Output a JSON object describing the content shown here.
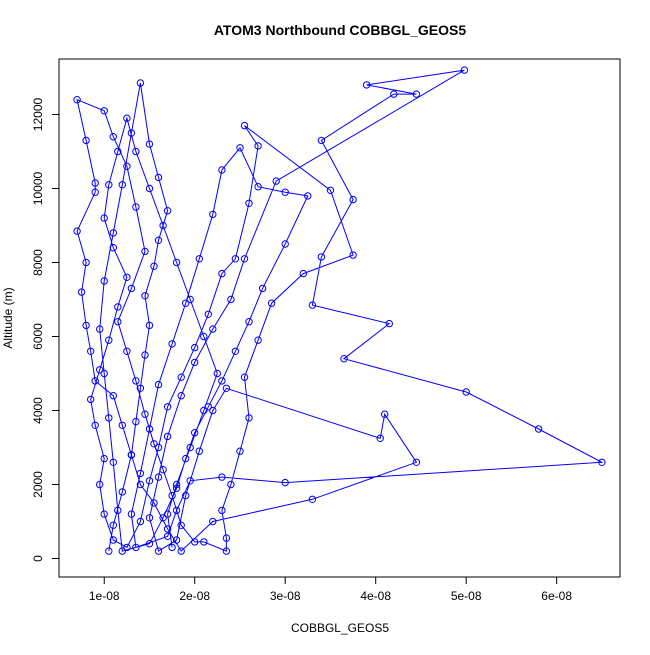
{
  "chart_data": {
    "type": "line",
    "title": "ATOM3 Northbound COBBGL_GEOS5",
    "xlabel": "COBBGL_GEOS5",
    "ylabel": "Altitude (m)",
    "xlim": [
      5e-09,
      6.7e-08
    ],
    "ylim": [
      -500,
      13500
    ],
    "x_ticks": [
      1e-08,
      2e-08,
      3e-08,
      4e-08,
      5e-08,
      6e-08
    ],
    "x_tick_labels": [
      "1e-08",
      "2e-08",
      "3e-08",
      "4e-08",
      "5e-08",
      "6e-08"
    ],
    "y_ticks": [
      0,
      2000,
      4000,
      6000,
      8000,
      10000,
      12000
    ],
    "y_tick_labels": [
      "0",
      "2000",
      "4000",
      "6000",
      "8000",
      "10000",
      "12000"
    ],
    "marker": "open-circle",
    "line_style": "solid",
    "grid": false,
    "series": [
      {
        "color": "#0000ff",
        "points": [
          [
            1.05e-08,
            200
          ],
          [
            1.1e-08,
            900
          ],
          [
            1.2e-08,
            1800
          ],
          [
            1.3e-08,
            2800
          ],
          [
            1.35e-08,
            3700
          ],
          [
            1.4e-08,
            4600
          ],
          [
            1.45e-08,
            5500
          ],
          [
            1.5e-08,
            6300
          ],
          [
            1.45e-08,
            7100
          ],
          [
            1.55e-08,
            7900
          ],
          [
            1.6e-08,
            8600
          ],
          [
            1.7e-08,
            9400
          ],
          [
            1.6e-08,
            10300
          ],
          [
            1.5e-08,
            11200
          ],
          [
            1.4e-08,
            12850
          ],
          [
            1.3e-08,
            11500
          ],
          [
            1.2e-08,
            10100
          ],
          [
            1.1e-08,
            8800
          ],
          [
            1e-08,
            7500
          ],
          [
            9.5e-09,
            6200
          ],
          [
            1e-08,
            5000
          ],
          [
            1.05e-08,
            3800
          ],
          [
            1.1e-08,
            2600
          ],
          [
            1.15e-08,
            1300
          ],
          [
            1.2e-08,
            200
          ],
          [
            1.5e-08,
            400
          ],
          [
            1.65e-08,
            1100
          ],
          [
            1.8e-08,
            1900
          ],
          [
            1.9e-08,
            2700
          ],
          [
            2e-08,
            3400
          ],
          [
            2.15e-08,
            4100
          ],
          [
            2.3e-08,
            4800
          ],
          [
            2.45e-08,
            5600
          ],
          [
            2.6e-08,
            6400
          ],
          [
            2.75e-08,
            7300
          ],
          [
            3e-08,
            8500
          ],
          [
            3.25e-08,
            9800
          ],
          [
            3e-08,
            9900
          ],
          [
            2.7e-08,
            10050
          ],
          [
            2.5e-08,
            11100
          ],
          [
            2.3e-08,
            10500
          ],
          [
            2.2e-08,
            9300
          ],
          [
            2.05e-08,
            8100
          ],
          [
            1.9e-08,
            6900
          ],
          [
            1.75e-08,
            5800
          ],
          [
            1.6e-08,
            4700
          ],
          [
            1.5e-08,
            3500
          ],
          [
            1.4e-08,
            2300
          ],
          [
            1.3e-08,
            1200
          ],
          [
            1.35e-08,
            300
          ],
          [
            1.7e-08,
            600
          ],
          [
            1.8e-08,
            1300
          ],
          [
            1.95e-08,
            2100
          ],
          [
            2.3e-08,
            2200
          ],
          [
            3e-08,
            2050
          ],
          [
            6.5e-08,
            2600
          ],
          [
            5.8e-08,
            3500
          ],
          [
            5e-08,
            4500
          ],
          [
            3.65e-08,
            5400
          ],
          [
            4.15e-08,
            6350
          ],
          [
            3.3e-08,
            6850
          ],
          [
            3.4e-08,
            8150
          ],
          [
            3.75e-08,
            9700
          ],
          [
            3.4e-08,
            11300
          ],
          [
            4.2e-08,
            12550
          ],
          [
            4.45e-08,
            12550
          ],
          [
            3.9e-08,
            12800
          ],
          [
            4.98e-08,
            13200
          ],
          [
            2.9e-08,
            10200
          ],
          [
            2.55e-08,
            8100
          ],
          [
            2.4e-08,
            7000
          ],
          [
            2.2e-08,
            6200
          ],
          [
            2e-08,
            5300
          ],
          [
            1.85e-08,
            4400
          ],
          [
            1.7e-08,
            3300
          ],
          [
            1.6e-08,
            2200
          ],
          [
            1.5e-08,
            1100
          ],
          [
            1.6e-08,
            200
          ],
          [
            1.8e-08,
            500
          ],
          [
            1.9e-08,
            1700
          ],
          [
            2.05e-08,
            2900
          ],
          [
            2.2e-08,
            4000
          ],
          [
            2.35e-08,
            4600
          ],
          [
            4.05e-08,
            3250
          ],
          [
            4.1e-08,
            3900
          ],
          [
            4.45e-08,
            2600
          ],
          [
            3.3e-08,
            1600
          ],
          [
            2.2e-08,
            1000
          ],
          [
            1.85e-08,
            200
          ],
          [
            1.7e-08,
            800
          ],
          [
            1.55e-08,
            1500
          ],
          [
            1.4e-08,
            2000
          ],
          [
            1.3e-08,
            2800
          ],
          [
            1.2e-08,
            3600
          ],
          [
            1.1e-08,
            4400
          ],
          [
            9e-09,
            4800
          ],
          [
            8.5e-09,
            5600
          ],
          [
            8e-09,
            6300
          ],
          [
            7.5e-09,
            7200
          ],
          [
            8e-09,
            8000
          ],
          [
            7e-09,
            8850
          ],
          [
            9e-09,
            9900
          ],
          [
            9e-09,
            10150
          ],
          [
            8e-09,
            11300
          ],
          [
            7e-09,
            12400
          ],
          [
            1e-08,
            12100
          ],
          [
            1.1e-08,
            11400
          ],
          [
            1.25e-08,
            10600
          ],
          [
            1.35e-08,
            9500
          ],
          [
            1.45e-08,
            8300
          ],
          [
            1.3e-08,
            7300
          ],
          [
            1.15e-08,
            6400
          ],
          [
            1.25e-08,
            5600
          ],
          [
            1.35e-08,
            4800
          ],
          [
            1.45e-08,
            3900
          ],
          [
            1.55e-08,
            3100
          ],
          [
            1.65e-08,
            2400
          ],
          [
            1.75e-08,
            1700
          ],
          [
            1.85e-08,
            900
          ],
          [
            2e-08,
            450
          ],
          [
            2.1e-08,
            450
          ],
          [
            2.35e-08,
            200
          ],
          [
            2.35e-08,
            550
          ],
          [
            2.3e-08,
            1300
          ],
          [
            2.4e-08,
            2000
          ],
          [
            2.5e-08,
            2900
          ],
          [
            2.6e-08,
            3800
          ],
          [
            2.55e-08,
            4900
          ],
          [
            2.7e-08,
            5900
          ],
          [
            2.85e-08,
            6900
          ],
          [
            3.2e-08,
            7700
          ],
          [
            3.75e-08,
            8200
          ],
          [
            3.5e-08,
            9950
          ],
          [
            2.55e-08,
            11700
          ],
          [
            2.7e-08,
            11150
          ],
          [
            2.6e-08,
            9600
          ],
          [
            2.45e-08,
            8100
          ],
          [
            2.3e-08,
            7700
          ],
          [
            2.15e-08,
            6600
          ],
          [
            2e-08,
            5700
          ],
          [
            1.85e-08,
            4900
          ],
          [
            1.7e-08,
            4100
          ],
          [
            1.6e-08,
            3000
          ],
          [
            1.5e-08,
            2100
          ],
          [
            1.4e-08,
            1000
          ],
          [
            1.25e-08,
            300
          ],
          [
            1.1e-08,
            500
          ],
          [
            1e-08,
            1200
          ],
          [
            9.5e-09,
            2000
          ],
          [
            1e-08,
            2700
          ],
          [
            9e-09,
            3600
          ],
          [
            8.5e-09,
            4300
          ],
          [
            9.5e-09,
            5100
          ],
          [
            1.05e-08,
            5900
          ],
          [
            1.15e-08,
            6800
          ],
          [
            1.25e-08,
            7600
          ],
          [
            1.1e-08,
            8400
          ],
          [
            1e-08,
            9200
          ],
          [
            1.05e-08,
            10100
          ],
          [
            1.15e-08,
            11000
          ],
          [
            1.25e-08,
            11900
          ],
          [
            1.35e-08,
            11000
          ],
          [
            1.5e-08,
            10000
          ],
          [
            1.65e-08,
            9000
          ],
          [
            1.8e-08,
            8000
          ],
          [
            1.95e-08,
            7000
          ],
          [
            2.1e-08,
            6000
          ],
          [
            2.25e-08,
            5000
          ],
          [
            2.1e-08,
            4000
          ],
          [
            1.95e-08,
            3000
          ],
          [
            1.8e-08,
            2000
          ],
          [
            1.7e-08,
            1200
          ],
          [
            1.75e-08,
            300
          ]
        ]
      }
    ]
  }
}
